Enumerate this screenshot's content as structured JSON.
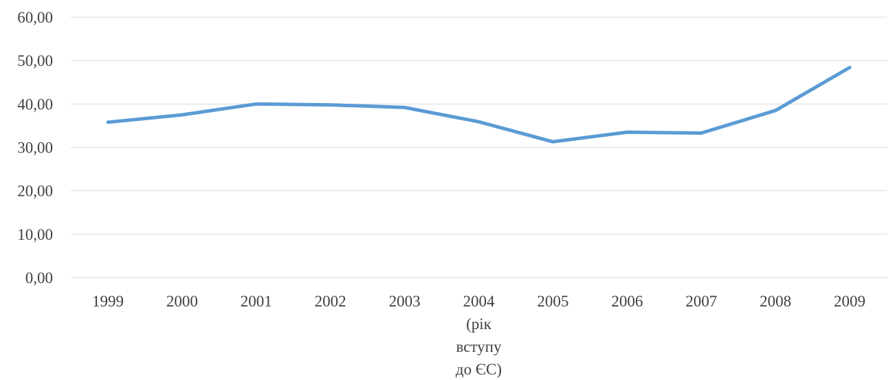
{
  "chart_data": {
    "type": "line",
    "title": "",
    "xlabel": "",
    "ylabel": "",
    "categories": [
      [
        "1999"
      ],
      [
        "2000"
      ],
      [
        "2001"
      ],
      [
        "2002"
      ],
      [
        "2003"
      ],
      [
        "2004",
        "(рік",
        "вступу",
        "до ЄС)"
      ],
      [
        "2005"
      ],
      [
        "2006"
      ],
      [
        "2007"
      ],
      [
        "2008"
      ],
      [
        "2009"
      ]
    ],
    "y_ticks": [
      "0,00",
      "10,00",
      "20,00",
      "30,00",
      "40,00",
      "50,00",
      "60,00"
    ],
    "ylim": [
      0,
      60
    ],
    "grid": true,
    "legend": "none",
    "series": [
      {
        "color": "#5b9bd5",
        "values": [
          35.8,
          37.5,
          40.0,
          39.8,
          39.2,
          35.9,
          31.3,
          33.5,
          33.3,
          38.5,
          48.4
        ]
      }
    ]
  }
}
